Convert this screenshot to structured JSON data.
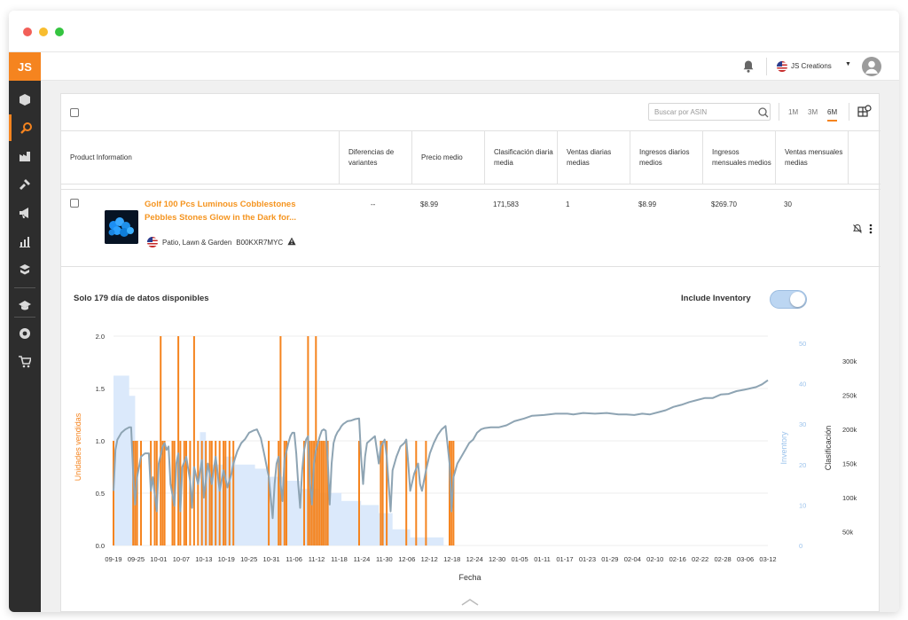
{
  "window": {
    "controls": [
      "close",
      "minimize",
      "maximize"
    ]
  },
  "brand": {
    "logo": "JS"
  },
  "header": {
    "notifications_icon": "bell-icon",
    "account_name": "JS Creations",
    "avatar_icon": "user-avatar-icon"
  },
  "sidebar": {
    "items": [
      "box-icon",
      "search-icon",
      "factory-icon",
      "hammer-icon",
      "megaphone-icon",
      "bar-chart-icon",
      "academy-icon",
      "graduation-icon",
      "chrome-icon",
      "cart-icon"
    ],
    "active_index": 1
  },
  "toolbar": {
    "search_placeholder": "Buscar por ASIN",
    "ranges": [
      "1M",
      "3M",
      "6M"
    ],
    "active_range": "6M"
  },
  "table": {
    "columns": [
      "Product Information",
      "Diferencias de variantes",
      "Precio medio",
      "Clasificación diaria media",
      "Ventas diarias medias",
      "Ingresos diarios medios",
      "Ingresos mensuales medios",
      "Ventas mensuales medias"
    ],
    "row": {
      "title_line1": "Golf 100 Pcs Luminous Cobblestones",
      "title_line2": "Pebbles Stones Glow in the Dark for...",
      "category": "Patio, Lawn & Garden",
      "asin": "B00KXR7MYC",
      "variant_diff": "--",
      "avg_price": "$8.99",
      "avg_rank": "171,583",
      "avg_daily_sales": "1",
      "avg_daily_revenue": "$8.99",
      "avg_monthly_revenue": "$269.70",
      "avg_monthly_sales": "30"
    }
  },
  "chart_panel": {
    "title": "Solo 179 día de datos disponibles",
    "include_inventory_label": "Include Inventory",
    "include_inventory": true
  },
  "chart_data": {
    "type": "bar",
    "xlabel": "Fecha",
    "x_ticks": [
      "09-19",
      "09-25",
      "10-01",
      "10-07",
      "10-13",
      "10-19",
      "10-25",
      "10-31",
      "11-06",
      "11-12",
      "11-18",
      "11-24",
      "11-30",
      "12-06",
      "12-12",
      "12-18",
      "12-24",
      "12-30",
      "01-05",
      "01-11",
      "01-17",
      "01-23",
      "01-29",
      "02-04",
      "02-10",
      "02-16",
      "02-22",
      "02-28",
      "03-06",
      "03-12"
    ],
    "y_left": {
      "label": "Unidades vendidas",
      "ticks": [
        "0.0",
        "0.5",
        "1.0",
        "1.5",
        "2.0"
      ],
      "ylim": [
        0,
        2
      ],
      "color": "#f5841f"
    },
    "y_inventory": {
      "label": "Inventory",
      "ticks": [
        "0",
        "10",
        "20",
        "30",
        "40",
        "50"
      ],
      "ylim": [
        0,
        50
      ],
      "color": "#9cc3ec"
    },
    "y_right": {
      "label": "Clasificación",
      "ticks": [
        "50k",
        "100k",
        "150k",
        "200k",
        "250k",
        "300k"
      ],
      "ylim": [
        30000,
        330000
      ],
      "color": "#7f98aa"
    },
    "units_sold": [
      [
        1,
        1
      ],
      [
        11,
        1
      ],
      [
        12,
        1
      ],
      [
        13,
        1
      ],
      [
        15,
        1
      ],
      [
        20,
        1
      ],
      [
        22,
        1
      ],
      [
        23,
        1
      ],
      [
        25,
        2
      ],
      [
        26,
        1
      ],
      [
        27,
        1
      ],
      [
        31,
        1
      ],
      [
        32,
        1
      ],
      [
        34,
        2
      ],
      [
        35,
        1
      ],
      [
        37,
        1
      ],
      [
        38,
        1
      ],
      [
        40,
        1
      ],
      [
        42,
        2
      ],
      [
        44,
        1
      ],
      [
        46,
        1
      ],
      [
        48,
        1
      ],
      [
        50,
        1
      ],
      [
        51,
        1
      ],
      [
        53,
        1
      ],
      [
        55,
        1
      ],
      [
        57,
        1
      ],
      [
        58,
        1
      ],
      [
        60,
        1
      ],
      [
        62,
        1
      ],
      [
        80,
        1
      ],
      [
        85,
        1
      ],
      [
        86,
        2
      ],
      [
        88,
        1
      ],
      [
        89,
        1
      ],
      [
        98,
        1
      ],
      [
        100,
        2
      ],
      [
        101,
        1
      ],
      [
        102,
        1
      ],
      [
        103,
        1
      ],
      [
        104,
        2
      ],
      [
        105,
        1
      ],
      [
        106,
        1
      ],
      [
        107,
        1
      ],
      [
        108,
        1
      ],
      [
        109,
        1
      ],
      [
        110,
        1
      ],
      [
        126,
        1
      ],
      [
        137,
        1
      ],
      [
        138,
        1
      ],
      [
        140,
        1
      ],
      [
        150,
        1
      ],
      [
        155,
        1
      ],
      [
        160,
        1
      ],
      [
        172,
        1
      ],
      [
        173,
        1
      ],
      [
        174,
        1
      ]
    ],
    "inventory": [
      [
        1,
        0
      ],
      [
        1,
        42
      ],
      [
        9,
        42
      ],
      [
        9,
        37
      ],
      [
        12,
        37
      ],
      [
        12,
        0
      ],
      [
        45,
        0
      ],
      [
        45,
        28
      ],
      [
        48,
        28
      ],
      [
        48,
        20
      ],
      [
        57,
        20
      ],
      [
        57,
        22
      ],
      [
        63,
        22
      ],
      [
        63,
        20
      ],
      [
        73,
        20
      ],
      [
        73,
        19
      ],
      [
        79,
        19
      ],
      [
        79,
        17
      ],
      [
        89,
        17
      ],
      [
        89,
        16
      ],
      [
        96,
        16
      ],
      [
        96,
        14
      ],
      [
        106,
        14
      ],
      [
        106,
        13
      ],
      [
        117,
        13
      ],
      [
        117,
        11
      ],
      [
        127,
        11
      ],
      [
        127,
        10
      ],
      [
        136,
        10
      ],
      [
        136,
        8
      ],
      [
        143,
        8
      ],
      [
        143,
        4
      ],
      [
        152,
        4
      ],
      [
        152,
        2
      ],
      [
        169,
        2
      ],
      [
        169,
        0
      ]
    ],
    "rank": [
      [
        1,
        110000
      ],
      [
        2,
        170000
      ],
      [
        3,
        185000
      ],
      [
        5,
        195000
      ],
      [
        7,
        200000
      ],
      [
        9,
        203000
      ],
      [
        10,
        203000
      ],
      [
        11,
        135000
      ],
      [
        12,
        90000
      ],
      [
        13,
        130000
      ],
      [
        15,
        160000
      ],
      [
        17,
        165000
      ],
      [
        19,
        165000
      ],
      [
        20,
        110000
      ],
      [
        21,
        130000
      ],
      [
        23,
        80000
      ],
      [
        24,
        150000
      ],
      [
        26,
        175000
      ],
      [
        27,
        180000
      ],
      [
        28,
        170000
      ],
      [
        29,
        175000
      ],
      [
        30,
        120000
      ],
      [
        32,
        88000
      ],
      [
        33,
        150000
      ],
      [
        34,
        165000
      ],
      [
        35,
        80000
      ],
      [
        36,
        145000
      ],
      [
        38,
        160000
      ],
      [
        40,
        125000
      ],
      [
        41,
        85000
      ],
      [
        42,
        145000
      ],
      [
        44,
        120000
      ],
      [
        46,
        155000
      ],
      [
        47,
        100000
      ],
      [
        49,
        150000
      ],
      [
        51,
        120000
      ],
      [
        53,
        160000
      ],
      [
        55,
        110000
      ],
      [
        57,
        140000
      ],
      [
        59,
        115000
      ],
      [
        61,
        135000
      ],
      [
        62,
        150000
      ],
      [
        64,
        168000
      ],
      [
        66,
        180000
      ],
      [
        68,
        186000
      ],
      [
        70,
        195000
      ],
      [
        72,
        198000
      ],
      [
        74,
        200000
      ],
      [
        76,
        187000
      ],
      [
        78,
        160000
      ],
      [
        80,
        130000
      ],
      [
        81,
        100000
      ],
      [
        82,
        70000
      ],
      [
        83,
        120000
      ],
      [
        84,
        150000
      ],
      [
        85,
        160000
      ],
      [
        86,
        120000
      ],
      [
        87,
        95000
      ],
      [
        88,
        155000
      ],
      [
        90,
        180000
      ],
      [
        91,
        190000
      ],
      [
        92,
        195000
      ],
      [
        93,
        195000
      ],
      [
        94,
        165000
      ],
      [
        95,
        120000
      ],
      [
        96,
        85000
      ],
      [
        97,
        140000
      ],
      [
        98,
        170000
      ],
      [
        99,
        185000
      ],
      [
        100,
        190000
      ],
      [
        101,
        120000
      ],
      [
        102,
        90000
      ],
      [
        103,
        150000
      ],
      [
        104,
        170000
      ],
      [
        105,
        180000
      ],
      [
        106,
        190000
      ],
      [
        107,
        198000
      ],
      [
        108,
        200000
      ],
      [
        109,
        198000
      ],
      [
        110,
        155000
      ],
      [
        111,
        90000
      ],
      [
        112,
        150000
      ],
      [
        113,
        180000
      ],
      [
        114,
        190000
      ],
      [
        115,
        196000
      ],
      [
        116,
        200000
      ],
      [
        117,
        205000
      ],
      [
        118,
        208000
      ],
      [
        119,
        210000
      ],
      [
        120,
        212000
      ],
      [
        122,
        213000
      ],
      [
        124,
        215000
      ],
      [
        126,
        216000
      ],
      [
        127,
        160000
      ],
      [
        128,
        120000
      ],
      [
        129,
        160000
      ],
      [
        130,
        180000
      ],
      [
        132,
        185000
      ],
      [
        134,
        190000
      ],
      [
        135,
        170000
      ],
      [
        136,
        150000
      ],
      [
        137,
        175000
      ],
      [
        139,
        185000
      ],
      [
        140,
        160000
      ],
      [
        141,
        120000
      ],
      [
        142,
        80000
      ],
      [
        143,
        140000
      ],
      [
        145,
        160000
      ],
      [
        147,
        175000
      ],
      [
        149,
        180000
      ],
      [
        150,
        185000
      ],
      [
        151,
        150000
      ],
      [
        152,
        110000
      ],
      [
        154,
        135000
      ],
      [
        156,
        150000
      ],
      [
        157,
        120000
      ],
      [
        158,
        110000
      ],
      [
        160,
        140000
      ],
      [
        162,
        165000
      ],
      [
        164,
        180000
      ],
      [
        166,
        192000
      ],
      [
        168,
        200000
      ],
      [
        170,
        205000
      ],
      [
        172,
        150000
      ],
      [
        173,
        80000
      ],
      [
        174,
        130000
      ],
      [
        176,
        150000
      ],
      [
        178,
        160000
      ],
      [
        180,
        170000
      ],
      [
        182,
        180000
      ],
      [
        184,
        185000
      ],
      [
        186,
        195000
      ],
      [
        188,
        200000
      ],
      [
        190,
        202000
      ],
      [
        193,
        203000
      ],
      [
        197,
        203000
      ],
      [
        201,
        206000
      ],
      [
        205,
        212000
      ],
      [
        210,
        216000
      ],
      [
        214,
        220000
      ],
      [
        220,
        221000
      ],
      [
        226,
        223000
      ],
      [
        232,
        223000
      ],
      [
        235,
        222000
      ],
      [
        240,
        224000
      ],
      [
        246,
        223000
      ],
      [
        252,
        224000
      ],
      [
        258,
        222000
      ],
      [
        262,
        222000
      ],
      [
        266,
        221000
      ],
      [
        270,
        223000
      ],
      [
        274,
        222000
      ],
      [
        278,
        225000
      ],
      [
        282,
        228000
      ],
      [
        286,
        233000
      ],
      [
        290,
        236000
      ],
      [
        294,
        240000
      ],
      [
        298,
        243000
      ],
      [
        302,
        246000
      ],
      [
        306,
        246000
      ],
      [
        310,
        251000
      ],
      [
        314,
        252000
      ],
      [
        318,
        256000
      ],
      [
        322,
        258000
      ],
      [
        325,
        260000
      ],
      [
        328,
        262000
      ],
      [
        331,
        266000
      ],
      [
        334,
        272000
      ]
    ],
    "line_color": "#8ea4b3",
    "bar_color": "#f5841f",
    "inventory_color": "#dbe9fb"
  }
}
